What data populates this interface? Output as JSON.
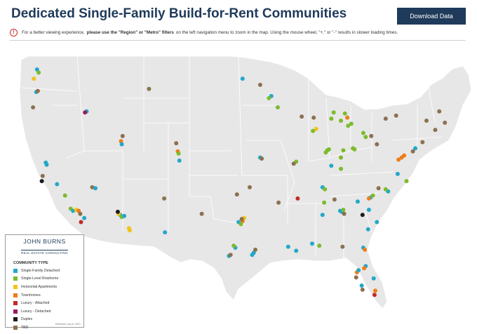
{
  "header": {
    "title": "Dedicated Single-Family Build-for-Rent Communities",
    "download_label": "Download Data"
  },
  "notice": {
    "icon": "warning-circle-icon",
    "text_before": "For a better viewing experience,",
    "text_bold": "please use the \"Region\" or \"Metro\" filters",
    "text_after": "on the left navigation menu to zoom in the map. Using the mouse wheel, \"+,\" or \"-\" results in slower loading times."
  },
  "legend": {
    "logo_line1": "JOHN BURNS",
    "logo_line2": "REAL ESTATE CONSULTING",
    "title": "COMMUNITY TYPE",
    "items": [
      {
        "label": "Single-Family Detached",
        "color": "#23a8c9"
      },
      {
        "label": "Single-Level Rowhome",
        "color": "#7dbb2e"
      },
      {
        "label": "Horizontal Apartments",
        "color": "#f2c21b"
      },
      {
        "label": "Townhomes",
        "color": "#ef7d1a"
      },
      {
        "label": "Luxury - Attached",
        "color": "#c42a2a"
      },
      {
        "label": "Luxury - Detached",
        "color": "#9b1b5e"
      },
      {
        "label": "Duplex",
        "color": "#1c1c1c"
      },
      {
        "label": "TBD",
        "color": "#8c7150"
      }
    ],
    "published": "Published July 6, 2021"
  },
  "map": {
    "land_color": "#e7e7e7",
    "border_color": "#ffffff",
    "points": [
      {
        "lon": -122.5,
        "lat": 47.7,
        "t": 0
      },
      {
        "lon": -122.3,
        "lat": 47.4,
        "t": 1
      },
      {
        "lon": -122.9,
        "lat": 46.8,
        "t": 2
      },
      {
        "lon": -122.6,
        "lat": 45.5,
        "t": 0
      },
      {
        "lon": -122.4,
        "lat": 45.6,
        "t": 7
      },
      {
        "lon": -123.0,
        "lat": 44.0,
        "t": 7
      },
      {
        "lon": -116.3,
        "lat": 43.6,
        "t": 0
      },
      {
        "lon": -116.5,
        "lat": 43.5,
        "t": 5
      },
      {
        "lon": -121.4,
        "lat": 38.6,
        "t": 0
      },
      {
        "lon": -121.3,
        "lat": 38.4,
        "t": 0
      },
      {
        "lon": -121.8,
        "lat": 37.3,
        "t": 7
      },
      {
        "lon": -121.9,
        "lat": 36.8,
        "t": 6
      },
      {
        "lon": -120.0,
        "lat": 36.5,
        "t": 0
      },
      {
        "lon": -119.0,
        "lat": 35.4,
        "t": 1
      },
      {
        "lon": -118.3,
        "lat": 34.1,
        "t": 1
      },
      {
        "lon": -118.0,
        "lat": 33.9,
        "t": 0
      },
      {
        "lon": -117.6,
        "lat": 34.0,
        "t": 2
      },
      {
        "lon": -117.3,
        "lat": 33.9,
        "t": 3
      },
      {
        "lon": -117.1,
        "lat": 33.6,
        "t": 7
      },
      {
        "lon": -117.0,
        "lat": 32.8,
        "t": 4
      },
      {
        "lon": -116.6,
        "lat": 33.2,
        "t": 0
      },
      {
        "lon": -115.6,
        "lat": 36.2,
        "t": 7
      },
      {
        "lon": -115.2,
        "lat": 36.1,
        "t": 0
      },
      {
        "lon": -112.1,
        "lat": 33.5,
        "t": 0
      },
      {
        "lon": -112.3,
        "lat": 33.6,
        "t": 2
      },
      {
        "lon": -111.9,
        "lat": 33.3,
        "t": 1
      },
      {
        "lon": -111.6,
        "lat": 33.4,
        "t": 0
      },
      {
        "lon": -112.4,
        "lat": 33.8,
        "t": 6
      },
      {
        "lon": -111.0,
        "lat": 32.2,
        "t": 2
      },
      {
        "lon": -110.9,
        "lat": 32.0,
        "t": 2
      },
      {
        "lon": -112.0,
        "lat": 40.7,
        "t": 3
      },
      {
        "lon": -111.9,
        "lat": 40.4,
        "t": 0
      },
      {
        "lon": -111.8,
        "lat": 41.2,
        "t": 7
      },
      {
        "lon": -104.9,
        "lat": 39.7,
        "t": 3
      },
      {
        "lon": -104.8,
        "lat": 39.5,
        "t": 1
      },
      {
        "lon": -104.7,
        "lat": 38.8,
        "t": 0
      },
      {
        "lon": -105.1,
        "lat": 40.5,
        "t": 7
      },
      {
        "lon": -108.5,
        "lat": 45.8,
        "t": 7
      },
      {
        "lon": -106.6,
        "lat": 35.1,
        "t": 7
      },
      {
        "lon": -106.5,
        "lat": 31.8,
        "t": 0
      },
      {
        "lon": -101.9,
        "lat": 33.6,
        "t": 7
      },
      {
        "lon": -97.3,
        "lat": 32.8,
        "t": 0
      },
      {
        "lon": -96.8,
        "lat": 32.9,
        "t": 3
      },
      {
        "lon": -96.6,
        "lat": 33.2,
        "t": 2
      },
      {
        "lon": -97.0,
        "lat": 32.6,
        "t": 1
      },
      {
        "lon": -96.9,
        "lat": 33.1,
        "t": 7
      },
      {
        "lon": -97.7,
        "lat": 30.3,
        "t": 0
      },
      {
        "lon": -97.9,
        "lat": 30.5,
        "t": 1
      },
      {
        "lon": -98.5,
        "lat": 29.5,
        "t": 0
      },
      {
        "lon": -98.3,
        "lat": 29.6,
        "t": 7
      },
      {
        "lon": -95.4,
        "lat": 29.8,
        "t": 0
      },
      {
        "lon": -95.6,
        "lat": 29.6,
        "t": 0
      },
      {
        "lon": -95.2,
        "lat": 30.1,
        "t": 7
      },
      {
        "lon": -95.9,
        "lat": 36.2,
        "t": 7
      },
      {
        "lon": -97.5,
        "lat": 35.5,
        "t": 7
      },
      {
        "lon": -94.6,
        "lat": 39.1,
        "t": 0
      },
      {
        "lon": -94.4,
        "lat": 39.0,
        "t": 7
      },
      {
        "lon": -93.2,
        "lat": 45.1,
        "t": 0
      },
      {
        "lon": -93.5,
        "lat": 44.9,
        "t": 1
      },
      {
        "lon": -92.4,
        "lat": 44.0,
        "t": 1
      },
      {
        "lon": -96.8,
        "lat": 46.8,
        "t": 0
      },
      {
        "lon": -94.6,
        "lat": 46.2,
        "t": 7
      },
      {
        "lon": -90.1,
        "lat": 38.7,
        "t": 1
      },
      {
        "lon": -90.4,
        "lat": 38.5,
        "t": 7
      },
      {
        "lon": -92.3,
        "lat": 34.7,
        "t": 7
      },
      {
        "lon": -89.9,
        "lat": 35.1,
        "t": 4
      },
      {
        "lon": -90.1,
        "lat": 30.0,
        "t": 0
      },
      {
        "lon": -91.1,
        "lat": 30.4,
        "t": 0
      },
      {
        "lon": -88.1,
        "lat": 30.7,
        "t": 0
      },
      {
        "lon": -87.6,
        "lat": 41.9,
        "t": 2
      },
      {
        "lon": -88.0,
        "lat": 41.7,
        "t": 1
      },
      {
        "lon": -87.9,
        "lat": 43.0,
        "t": 7
      },
      {
        "lon": -89.4,
        "lat": 43.1,
        "t": 7
      },
      {
        "lon": -86.2,
        "lat": 39.8,
        "t": 1
      },
      {
        "lon": -86.0,
        "lat": 39.9,
        "t": 1
      },
      {
        "lon": -86.4,
        "lat": 39.6,
        "t": 1
      },
      {
        "lon": -84.5,
        "lat": 39.1,
        "t": 1
      },
      {
        "lon": -84.2,
        "lat": 39.8,
        "t": 1
      },
      {
        "lon": -83.0,
        "lat": 40.0,
        "t": 1
      },
      {
        "lon": -82.8,
        "lat": 39.9,
        "t": 1
      },
      {
        "lon": -83.2,
        "lat": 42.4,
        "t": 1
      },
      {
        "lon": -83.6,
        "lat": 42.2,
        "t": 1
      },
      {
        "lon": -84.5,
        "lat": 42.7,
        "t": 1
      },
      {
        "lon": -85.7,
        "lat": 42.9,
        "t": 1
      },
      {
        "lon": -85.4,
        "lat": 43.5,
        "t": 1
      },
      {
        "lon": -84.0,
        "lat": 43.4,
        "t": 1
      },
      {
        "lon": -83.7,
        "lat": 43.0,
        "t": 3
      },
      {
        "lon": -81.7,
        "lat": 41.5,
        "t": 1
      },
      {
        "lon": -81.4,
        "lat": 41.1,
        "t": 1
      },
      {
        "lon": -80.7,
        "lat": 41.2,
        "t": 7
      },
      {
        "lon": -80.0,
        "lat": 40.4,
        "t": 7
      },
      {
        "lon": -86.8,
        "lat": 36.2,
        "t": 0
      },
      {
        "lon": -86.5,
        "lat": 36.0,
        "t": 1
      },
      {
        "lon": -85.3,
        "lat": 35.0,
        "t": 7
      },
      {
        "lon": -84.4,
        "lat": 33.8,
        "t": 0
      },
      {
        "lon": -84.6,
        "lat": 33.9,
        "t": 0
      },
      {
        "lon": -84.2,
        "lat": 34.0,
        "t": 1
      },
      {
        "lon": -84.1,
        "lat": 33.6,
        "t": 7
      },
      {
        "lon": -86.8,
        "lat": 33.5,
        "t": 0
      },
      {
        "lon": -86.6,
        "lat": 34.7,
        "t": 1
      },
      {
        "lon": -85.7,
        "lat": 38.3,
        "t": 0
      },
      {
        "lon": -84.5,
        "lat": 38.0,
        "t": 1
      },
      {
        "lon": -80.8,
        "lat": 35.2,
        "t": 0
      },
      {
        "lon": -81.0,
        "lat": 35.1,
        "t": 3
      },
      {
        "lon": -80.5,
        "lat": 35.4,
        "t": 1
      },
      {
        "lon": -78.6,
        "lat": 35.8,
        "t": 0
      },
      {
        "lon": -78.9,
        "lat": 36.0,
        "t": 1
      },
      {
        "lon": -79.8,
        "lat": 36.1,
        "t": 7
      },
      {
        "lon": -82.4,
        "lat": 34.8,
        "t": 0
      },
      {
        "lon": -81.0,
        "lat": 34.0,
        "t": 0
      },
      {
        "lon": -81.8,
        "lat": 33.5,
        "t": 6
      },
      {
        "lon": -80.0,
        "lat": 32.8,
        "t": 0
      },
      {
        "lon": -81.1,
        "lat": 32.1,
        "t": 0
      },
      {
        "lon": -81.7,
        "lat": 30.3,
        "t": 0
      },
      {
        "lon": -81.5,
        "lat": 30.1,
        "t": 3
      },
      {
        "lon": -81.4,
        "lat": 28.5,
        "t": 0
      },
      {
        "lon": -81.6,
        "lat": 28.3,
        "t": 3
      },
      {
        "lon": -82.5,
        "lat": 27.9,
        "t": 3
      },
      {
        "lon": -82.3,
        "lat": 28.1,
        "t": 0
      },
      {
        "lon": -82.6,
        "lat": 27.4,
        "t": 7
      },
      {
        "lon": -81.9,
        "lat": 26.6,
        "t": 0
      },
      {
        "lon": -81.8,
        "lat": 26.2,
        "t": 7
      },
      {
        "lon": -80.2,
        "lat": 26.1,
        "t": 3
      },
      {
        "lon": -80.3,
        "lat": 25.7,
        "t": 4
      },
      {
        "lon": -80.4,
        "lat": 27.3,
        "t": 0
      },
      {
        "lon": -84.3,
        "lat": 30.4,
        "t": 7
      },
      {
        "lon": -87.2,
        "lat": 30.5,
        "t": 1
      },
      {
        "lon": -77.4,
        "lat": 37.5,
        "t": 0
      },
      {
        "lon": -76.3,
        "lat": 36.8,
        "t": 1
      },
      {
        "lon": -77.3,
        "lat": 38.9,
        "t": 3
      },
      {
        "lon": -76.6,
        "lat": 39.3,
        "t": 3
      },
      {
        "lon": -76.9,
        "lat": 39.1,
        "t": 3
      },
      {
        "lon": -75.2,
        "lat": 40.0,
        "t": 0
      },
      {
        "lon": -75.5,
        "lat": 39.7,
        "t": 7
      },
      {
        "lon": -74.3,
        "lat": 40.6,
        "t": 7
      },
      {
        "lon": -73.8,
        "lat": 42.7,
        "t": 7
      },
      {
        "lon": -72.7,
        "lat": 41.8,
        "t": 7
      },
      {
        "lon": -71.5,
        "lat": 42.5,
        "t": 7
      },
      {
        "lon": -77.6,
        "lat": 43.2,
        "t": 7
      },
      {
        "lon": -78.9,
        "lat": 42.9,
        "t": 7
      },
      {
        "lon": -72.2,
        "lat": 43.6,
        "t": 7
      }
    ]
  }
}
